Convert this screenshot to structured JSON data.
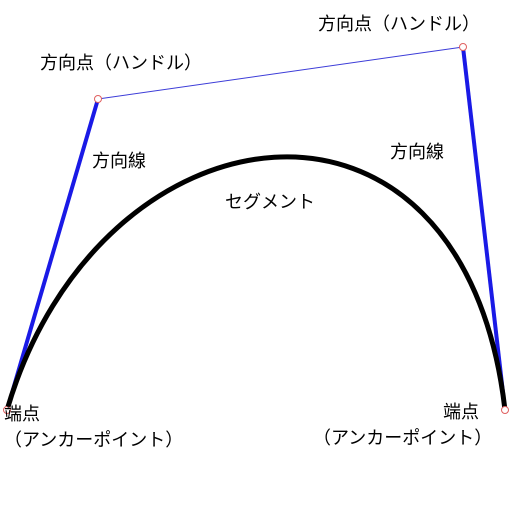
{
  "labels": {
    "handle_left": "方向点（ハンドル）",
    "handle_right": "方向点（ハンドル）",
    "direction_line_left": "方向線",
    "direction_line_right": "方向線",
    "segment": "セグメント",
    "anchor_left_line1": "端点",
    "anchor_left_line2": "（アンカーポイント）",
    "anchor_right_line1": "端点",
    "anchor_right_line2": "（アンカーポイント）"
  },
  "colors": {
    "direction_line": "#1a1ae6",
    "handle_connector": "#3c3cd8",
    "segment": "#000000",
    "point_marker": "#e06060",
    "text": "#000000"
  }
}
